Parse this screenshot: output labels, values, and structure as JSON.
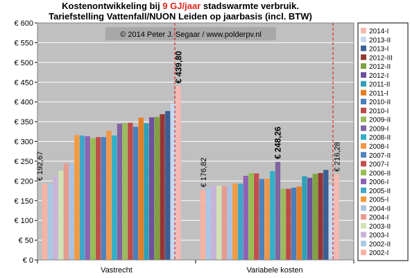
{
  "title": {
    "line1_pre": "Kostenontwikkeling bij ",
    "line1_highlight": "9 GJ/jaar",
    "line1_post": " stadswarmte verbruik.",
    "line2": "Tariefstelling Vattenfall/NUON Leiden op jaarbasis (incl. BTW)"
  },
  "chart_data": {
    "type": "bar",
    "copyright": "© 2014 Peter J. Segaar / www.polderpv.nl",
    "categories": [
      "Vastrecht",
      "Variabele kosten"
    ],
    "ylim": [
      0,
      600
    ],
    "y_ticks": [
      "€ 0",
      "€ 50",
      "€ 100",
      "€ 150",
      "€ 200",
      "€ 250",
      "€ 300",
      "€ 350",
      "€ 400",
      "€ 450",
      "€ 500",
      "€ 550",
      "€ 600"
    ],
    "grid": true,
    "legend_position": "right",
    "series": [
      {
        "name": "2002-I",
        "color": "#f9b3a2",
        "values": [
          192.67,
          176.82
        ]
      },
      {
        "name": "2002-II",
        "color": "#a9c8e6",
        "values": [
          193,
          181
        ]
      },
      {
        "name": "2003-I",
        "color": "#c9b4d9",
        "values": [
          214,
          188
        ]
      },
      {
        "name": "2003-II",
        "color": "#d3e2b3",
        "values": [
          226,
          188
        ]
      },
      {
        "name": "2004-I",
        "color": "#e69b91",
        "values": [
          244,
          187
        ]
      },
      {
        "name": "2004-II",
        "color": "#aac2e3",
        "values": [
          244,
          188
        ]
      },
      {
        "name": "2005-I",
        "color": "#f49a3d",
        "values": [
          316,
          193
        ]
      },
      {
        "name": "2005-II",
        "color": "#3fa8c8",
        "values": [
          315,
          193
        ]
      },
      {
        "name": "2006-I",
        "color": "#8e62b5",
        "values": [
          313,
          213
        ]
      },
      {
        "name": "2006-II",
        "color": "#93bf4c",
        "values": [
          308,
          220
        ]
      },
      {
        "name": "2007-I",
        "color": "#c0504d",
        "values": [
          311,
          219
        ]
      },
      {
        "name": "2007-II",
        "color": "#4f81bd",
        "values": [
          311,
          205
        ]
      },
      {
        "name": "2008-I",
        "color": "#f79646",
        "values": [
          327,
          206
        ]
      },
      {
        "name": "2008-II",
        "color": "#31b0c6",
        "values": [
          315,
          225
        ]
      },
      {
        "name": "2009-I",
        "color": "#8064a2",
        "values": [
          345,
          248.26
        ]
      },
      {
        "name": "2009-II",
        "color": "#9bbb59",
        "values": [
          346,
          180
        ]
      },
      {
        "name": "2010-I",
        "color": "#be4b48",
        "values": [
          347,
          180
        ]
      },
      {
        "name": "2010-II",
        "color": "#4a7ebb",
        "values": [
          337,
          183
        ]
      },
      {
        "name": "2011-I",
        "color": "#e67e22",
        "values": [
          360,
          186
        ]
      },
      {
        "name": "2011-II",
        "color": "#2f9fb6",
        "values": [
          346,
          212
        ]
      },
      {
        "name": "2012-I",
        "color": "#6f4f9e",
        "values": [
          361,
          208
        ]
      },
      {
        "name": "2012-II",
        "color": "#7fa33e",
        "values": [
          362,
          218
        ]
      },
      {
        "name": "2012-III",
        "color": "#953735",
        "values": [
          369,
          220
        ]
      },
      {
        "name": "2013-I",
        "color": "#3b5f94",
        "values": [
          377,
          228
        ]
      },
      {
        "name": "2013-II",
        "color": "#c6d9ef",
        "values": [
          396,
          190
        ]
      },
      {
        "name": "2014-I",
        "color": "#f5b9b2",
        "values": [
          439.8,
          216.28
        ]
      }
    ],
    "annotations": [
      {
        "text": "€ 192,67",
        "group": 0,
        "series": "2002-I",
        "bold": false
      },
      {
        "text": "€ 439,80",
        "group": 0,
        "series": "2014-I",
        "bold": true
      },
      {
        "text": "€ 176,82",
        "group": 1,
        "series": "2002-I",
        "bold": false
      },
      {
        "text": "€ 248,26",
        "group": 1,
        "series": "2009-I",
        "bold": true
      },
      {
        "text": "€ 216,28",
        "group": 1,
        "series": "2014-I",
        "bold": false
      }
    ]
  }
}
